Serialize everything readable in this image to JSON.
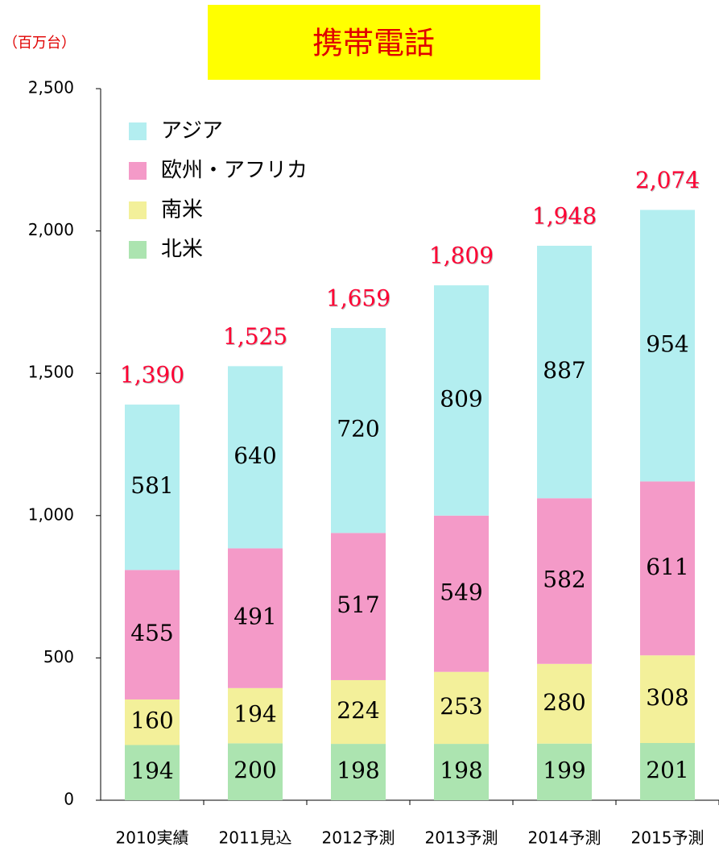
{
  "chart_data": {
    "type": "stacked_bar",
    "title": "携帯電話",
    "unit_label": "（百万台）",
    "categories": [
      "2010実績",
      "2011見込",
      "2012予測",
      "2013予測",
      "2014予測",
      "2015予測"
    ],
    "series": [
      {
        "name": "北米",
        "color": "#ace4b0",
        "values": [
          194,
          200,
          198,
          198,
          199,
          201
        ]
      },
      {
        "name": "南米",
        "color": "#f3f09a",
        "values": [
          160,
          194,
          224,
          253,
          280,
          308
        ]
      },
      {
        "name": "欧州・アフリカ",
        "color": "#f49ac8",
        "values": [
          455,
          491,
          517,
          549,
          582,
          611
        ]
      },
      {
        "name": "アジア",
        "color": "#b3eef0",
        "values": [
          581,
          640,
          720,
          809,
          887,
          954
        ]
      }
    ],
    "totals": [
      1390,
      1525,
      1659,
      1809,
      1948,
      2074
    ],
    "total_labels": [
      "1,390",
      "1,525",
      "1,659",
      "1,809",
      "1,948",
      "2,074"
    ],
    "total_color": "#ff0033",
    "ylim": [
      0,
      2500
    ],
    "yticks": [
      0,
      500,
      {
        "value": 1000,
        "label": "1,000"
      },
      {
        "value": 1500,
        "label": "1,500"
      },
      {
        "value": 2000,
        "label": "2,000"
      },
      {
        "value": 2500,
        "label": "2,500"
      }
    ],
    "legend": "upper left"
  }
}
